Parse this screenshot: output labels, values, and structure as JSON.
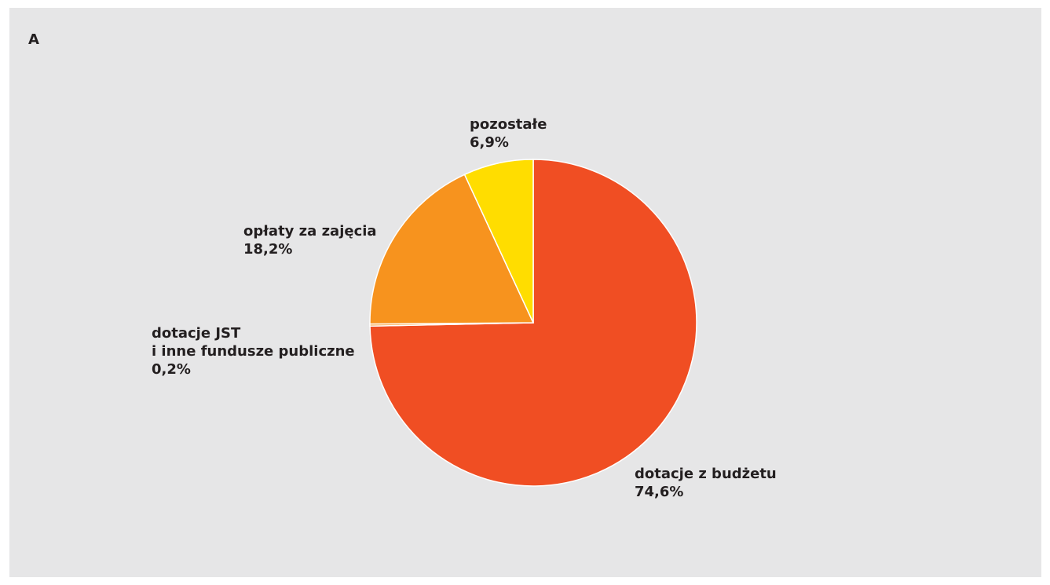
{
  "panel": {
    "letter": "A"
  },
  "chart_data": {
    "type": "pie",
    "title": "",
    "start_angle_deg": 0,
    "direction": "clockwise",
    "slices": [
      {
        "label": "dotacje z budżetu",
        "value": 74.6,
        "value_label": "74,6%",
        "color": "#f04e23"
      },
      {
        "label": "dotacje JST i inne fundusze publiczne",
        "label_lines": [
          "dotacje JST",
          "i inne fundusze publiczne"
        ],
        "value": 0.2,
        "value_label": "0,2%",
        "color": "#f7931e"
      },
      {
        "label": "opłaty za zajęcia",
        "value": 18.2,
        "value_label": "18,2%",
        "color": "#f7931e"
      },
      {
        "label": "pozostałe",
        "value": 6.9,
        "value_label": "6,9%",
        "color": "#ffdd00"
      }
    ]
  }
}
